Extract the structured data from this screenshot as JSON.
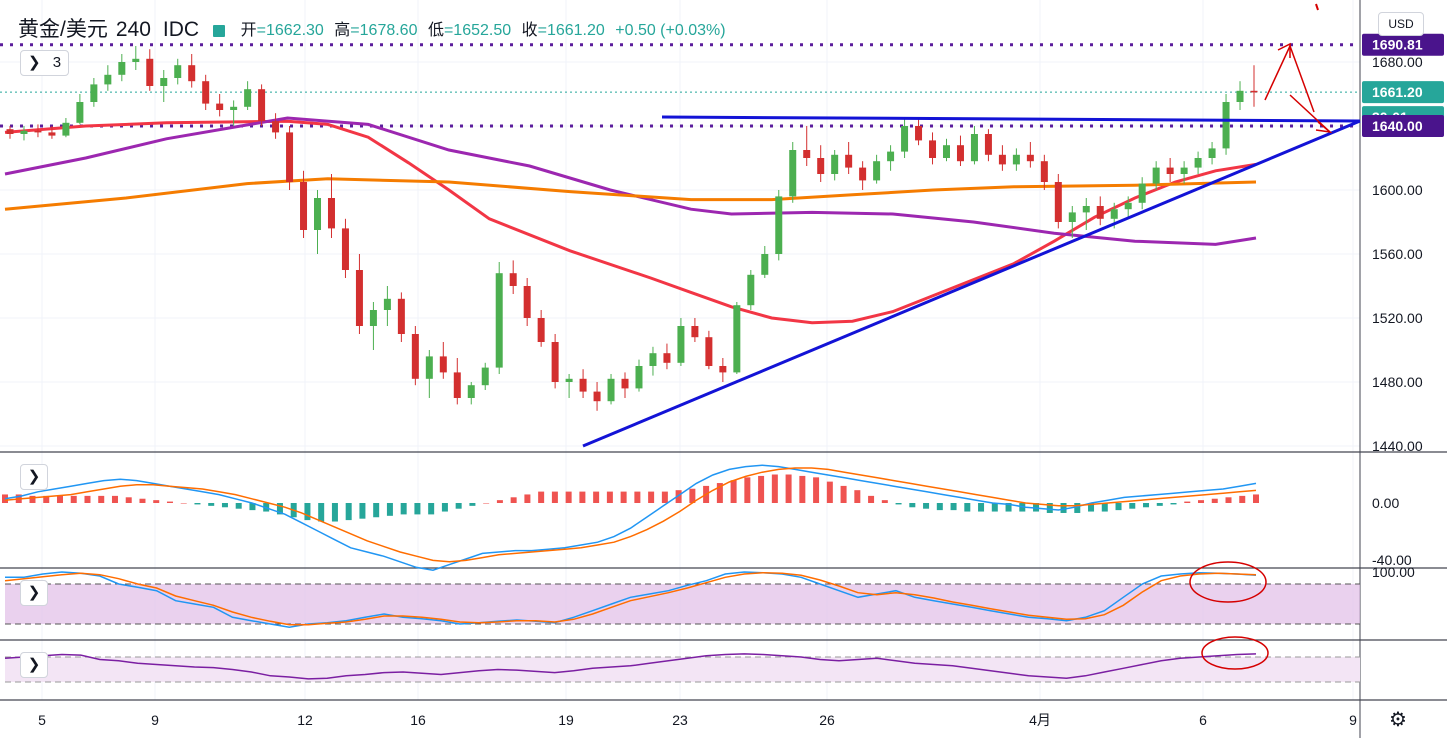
{
  "header": {
    "symbol": "黄金/美元",
    "interval": "240",
    "source": "IDC",
    "open_label": "开",
    "open": "=1662.30",
    "high_label": "高",
    "high": "=1678.60",
    "low_label": "低",
    "low": "=1652.50",
    "close_label": "收",
    "close": "=1661.20",
    "change": "+0.50 (+0.03%)"
  },
  "collapse_label": "3",
  "currency": "USD",
  "colors": {
    "up": "#26a69a",
    "candle_up": "#4caf50",
    "candle_down": "#d32f2f",
    "ma_fast": "#f23645",
    "ma_mid": "#9c27b0",
    "ma_slow": "#f57c00",
    "trendline": "#1313d6",
    "level": "#5b1d9c",
    "annotation": "#d50000"
  },
  "chart_data": [
    {
      "type": "candlestick",
      "x_ticks": [
        "5",
        "9",
        "12",
        "16",
        "19",
        "23",
        "26",
        "4月",
        "6",
        "9"
      ],
      "y_ticks": [
        "1680.00",
        "1640.00",
        "1600.00",
        "1560.00",
        "1520.00",
        "1480.00",
        "1440.00"
      ],
      "price_labels": [
        {
          "text": "1690.81",
          "value": 1690.81,
          "style": "level"
        },
        {
          "text": "1661.20",
          "value": 1661.2,
          "style": "last"
        },
        {
          "text": "30:01",
          "value": 1643.5,
          "style": "timer"
        },
        {
          "text": "1640.00",
          "value": 1640.0,
          "style": "level"
        }
      ],
      "horizontal_levels": [
        1690.81,
        1640.0
      ],
      "trendlines": [
        {
          "from": [
            19.1,
            1440
          ],
          "to": [
            8.45,
            1641
          ]
        },
        {
          "from": [
            22.8,
            1645
          ],
          "to": [
            8.45,
            1643
          ]
        }
      ],
      "ma_lines": [
        {
          "key": "ma_fast",
          "points": [
            [
              5,
              1636
            ],
            [
              7,
              1640
            ],
            [
              9,
              1642
            ],
            [
              12,
              1643
            ],
            [
              13,
              1641
            ],
            [
              14,
              1633
            ],
            [
              15,
              1617
            ],
            [
              16,
              1600
            ],
            [
              17,
              1582
            ],
            [
              19,
              1562
            ],
            [
              21,
              1545
            ],
            [
              22,
              1536
            ],
            [
              23,
              1527
            ],
            [
              24,
              1520
            ],
            [
              25,
              1517
            ],
            [
              26,
              1518
            ],
            [
              27,
              1524
            ],
            [
              28,
              1534
            ],
            [
              30,
              1554
            ],
            [
              31,
              1568
            ],
            [
              32,
              1583
            ],
            [
              33,
              1595
            ],
            [
              34,
              1605
            ],
            [
              35,
              1612
            ],
            [
              36,
              1616
            ]
          ]
        },
        {
          "key": "ma_mid",
          "points": [
            [
              5,
              1610
            ],
            [
              7,
              1620
            ],
            [
              9,
              1632
            ],
            [
              12,
              1645
            ],
            [
              14,
              1641
            ],
            [
              16,
              1625
            ],
            [
              18,
              1615
            ],
            [
              20,
              1600
            ],
            [
              22,
              1588
            ],
            [
              23,
              1585
            ],
            [
              25,
              1586
            ],
            [
              27,
              1585
            ],
            [
              29,
              1580
            ],
            [
              31,
              1573
            ],
            [
              33,
              1568
            ],
            [
              35,
              1566
            ],
            [
              36,
              1570
            ]
          ]
        },
        {
          "key": "ma_slow",
          "points": [
            [
              5,
              1588
            ],
            [
              8,
              1595
            ],
            [
              11,
              1604
            ],
            [
              13,
              1607
            ],
            [
              16,
              1605
            ],
            [
              19,
              1599
            ],
            [
              22,
              1594
            ],
            [
              24,
              1594
            ],
            [
              26,
              1597
            ],
            [
              28,
              1600
            ],
            [
              30,
              1602
            ],
            [
              33,
              1603
            ],
            [
              36,
              1605
            ]
          ]
        }
      ],
      "candles": [
        [
          1638,
          1640,
          1632,
          1635
        ],
        [
          1635,
          1640,
          1631,
          1637
        ],
        [
          1637,
          1641,
          1633,
          1636
        ],
        [
          1636,
          1640,
          1632,
          1634
        ],
        [
          1634,
          1645,
          1633,
          1642
        ],
        [
          1642,
          1660,
          1641,
          1655
        ],
        [
          1655,
          1670,
          1652,
          1666
        ],
        [
          1666,
          1678,
          1662,
          1672
        ],
        [
          1672,
          1685,
          1668,
          1680
        ],
        [
          1680,
          1690,
          1675,
          1682
        ],
        [
          1682,
          1688,
          1662,
          1665
        ],
        [
          1665,
          1675,
          1655,
          1670
        ],
        [
          1670,
          1682,
          1666,
          1678
        ],
        [
          1678,
          1685,
          1664,
          1668
        ],
        [
          1668,
          1672,
          1650,
          1654
        ],
        [
          1654,
          1660,
          1646,
          1650
        ],
        [
          1650,
          1656,
          1640,
          1652
        ],
        [
          1652,
          1668,
          1650,
          1663
        ],
        [
          1663,
          1666,
          1640,
          1643
        ],
        [
          1643,
          1648,
          1632,
          1636
        ],
        [
          1636,
          1640,
          1600,
          1605
        ],
        [
          1605,
          1612,
          1570,
          1575
        ],
        [
          1575,
          1600,
          1560,
          1595
        ],
        [
          1595,
          1610,
          1570,
          1576
        ],
        [
          1576,
          1582,
          1545,
          1550
        ],
        [
          1550,
          1560,
          1510,
          1515
        ],
        [
          1515,
          1530,
          1500,
          1525
        ],
        [
          1525,
          1540,
          1515,
          1532
        ],
        [
          1532,
          1536,
          1505,
          1510
        ],
        [
          1510,
          1515,
          1478,
          1482
        ],
        [
          1482,
          1500,
          1470,
          1496
        ],
        [
          1496,
          1505,
          1482,
          1486
        ],
        [
          1486,
          1495,
          1466,
          1470
        ],
        [
          1470,
          1480,
          1466,
          1478
        ],
        [
          1478,
          1492,
          1475,
          1489
        ],
        [
          1489,
          1555,
          1485,
          1548
        ],
        [
          1548,
          1556,
          1535,
          1540
        ],
        [
          1540,
          1545,
          1515,
          1520
        ],
        [
          1520,
          1525,
          1502,
          1505
        ],
        [
          1505,
          1510,
          1476,
          1480
        ],
        [
          1480,
          1485,
          1470,
          1482
        ],
        [
          1482,
          1488,
          1470,
          1474
        ],
        [
          1474,
          1480,
          1462,
          1468
        ],
        [
          1468,
          1485,
          1466,
          1482
        ],
        [
          1482,
          1486,
          1470,
          1476
        ],
        [
          1476,
          1494,
          1474,
          1490
        ],
        [
          1490,
          1502,
          1484,
          1498
        ],
        [
          1498,
          1504,
          1488,
          1492
        ],
        [
          1492,
          1520,
          1490,
          1515
        ],
        [
          1515,
          1520,
          1505,
          1508
        ],
        [
          1508,
          1512,
          1488,
          1490
        ],
        [
          1490,
          1495,
          1480,
          1486
        ],
        [
          1486,
          1530,
          1485,
          1528
        ],
        [
          1528,
          1550,
          1525,
          1547
        ],
        [
          1547,
          1565,
          1545,
          1560
        ],
        [
          1560,
          1600,
          1556,
          1596
        ],
        [
          1596,
          1630,
          1592,
          1625
        ],
        [
          1625,
          1640,
          1615,
          1620
        ],
        [
          1620,
          1628,
          1605,
          1610
        ],
        [
          1610,
          1625,
          1606,
          1622
        ],
        [
          1622,
          1630,
          1610,
          1614
        ],
        [
          1614,
          1618,
          1600,
          1606
        ],
        [
          1606,
          1622,
          1604,
          1618
        ],
        [
          1618,
          1628,
          1612,
          1624
        ],
        [
          1624,
          1645,
          1620,
          1640
        ],
        [
          1640,
          1644,
          1628,
          1631
        ],
        [
          1631,
          1636,
          1616,
          1620
        ],
        [
          1620,
          1632,
          1618,
          1628
        ],
        [
          1628,
          1634,
          1615,
          1618
        ],
        [
          1618,
          1640,
          1616,
          1635
        ],
        [
          1635,
          1638,
          1618,
          1622
        ],
        [
          1622,
          1628,
          1612,
          1616
        ],
        [
          1616,
          1626,
          1612,
          1622
        ],
        [
          1622,
          1630,
          1614,
          1618
        ],
        [
          1618,
          1622,
          1600,
          1605
        ],
        [
          1605,
          1610,
          1576,
          1580
        ],
        [
          1580,
          1590,
          1570,
          1586
        ],
        [
          1586,
          1595,
          1575,
          1590
        ],
        [
          1590,
          1596,
          1578,
          1582
        ],
        [
          1582,
          1592,
          1576,
          1588
        ],
        [
          1588,
          1596,
          1582,
          1592
        ],
        [
          1592,
          1608,
          1588,
          1604
        ],
        [
          1604,
          1618,
          1600,
          1614
        ],
        [
          1614,
          1620,
          1605,
          1610
        ],
        [
          1610,
          1618,
          1604,
          1614
        ],
        [
          1614,
          1624,
          1610,
          1620
        ],
        [
          1620,
          1630,
          1616,
          1626
        ],
        [
          1626,
          1660,
          1622,
          1655
        ],
        [
          1655,
          1668,
          1650,
          1662
        ],
        [
          1662,
          1678,
          1652,
          1661
        ]
      ]
    },
    {
      "type": "macd",
      "y_ticks": [
        "0.00",
        "-40.00"
      ],
      "histogram_values": [
        6,
        6,
        5,
        5,
        5,
        5,
        5,
        5,
        5,
        4,
        3,
        2,
        1,
        0,
        -1,
        -2,
        -3,
        -4,
        -5,
        -6,
        -8,
        -10,
        -12,
        -13,
        -13,
        -12,
        -11,
        -10,
        -9,
        -8,
        -8,
        -8,
        -6,
        -4,
        -2,
        0,
        2,
        4,
        6,
        8,
        8,
        8,
        8,
        8,
        8,
        8,
        8,
        8,
        8,
        9,
        10,
        12,
        14,
        16,
        18,
        19,
        20,
        20,
        19,
        18,
        15,
        12,
        9,
        5,
        2,
        -1,
        -3,
        -4,
        -5,
        -5,
        -6,
        -6,
        -6,
        -6,
        -6,
        -6,
        -7,
        -7,
        -7,
        -6,
        -6,
        -5,
        -4,
        -3,
        -2,
        -1,
        1,
        2,
        3,
        4,
        5,
        6
      ],
      "macd_line": [
        3,
        5,
        8,
        10,
        12,
        14,
        16,
        17,
        16,
        14,
        12,
        10,
        8,
        6,
        3,
        0,
        -4,
        -8,
        -14,
        -20,
        -26,
        -32,
        -35,
        -38,
        -42,
        -46,
        -48,
        -44,
        -40,
        -36,
        -35,
        -34,
        -34,
        -33,
        -32,
        -30,
        -28,
        -24,
        -18,
        -10,
        -2,
        6,
        14,
        20,
        24,
        26,
        27,
        26,
        24,
        22,
        20,
        18,
        16,
        14,
        12,
        10,
        8,
        6,
        4,
        2,
        0,
        -1,
        -3,
        -4,
        -5,
        -3,
        0,
        2,
        4,
        5,
        6,
        7,
        8,
        9,
        10,
        12,
        14
      ],
      "signal_line": [
        2,
        3,
        4,
        5,
        6,
        8,
        10,
        12,
        13,
        13,
        12,
        11,
        10,
        8,
        6,
        3,
        0,
        -3,
        -7,
        -12,
        -17,
        -22,
        -27,
        -31,
        -35,
        -38,
        -41,
        -42,
        -41,
        -39,
        -37,
        -36,
        -35,
        -34,
        -33,
        -32,
        -30,
        -28,
        -24,
        -19,
        -13,
        -6,
        2,
        9,
        15,
        19,
        22,
        24,
        25,
        25,
        24,
        22,
        20,
        18,
        16,
        14,
        12,
        10,
        8,
        6,
        4,
        2,
        0,
        -1,
        -2,
        -2,
        -1,
        0,
        1,
        2,
        3,
        4,
        5,
        6,
        7,
        8,
        9
      ]
    },
    {
      "type": "stochastic",
      "y_ticks": [
        "100.00"
      ],
      "k_line": [
        90,
        90,
        95,
        98,
        96,
        92,
        80,
        75,
        70,
        55,
        50,
        45,
        30,
        25,
        20,
        15,
        20,
        22,
        25,
        30,
        35,
        30,
        28,
        25,
        20,
        22,
        24,
        26,
        24,
        22,
        30,
        40,
        50,
        60,
        65,
        70,
        78,
        85,
        95,
        98,
        97,
        95,
        90,
        80,
        70,
        60,
        65,
        70,
        60,
        55,
        50,
        45,
        40,
        35,
        30,
        28,
        25,
        30,
        40,
        60,
        80,
        92,
        95,
        97,
        96,
        95,
        93
      ],
      "d_line": [
        85,
        88,
        91,
        94,
        96,
        94,
        88,
        80,
        74,
        62,
        55,
        48,
        38,
        30,
        24,
        19,
        19,
        21,
        23,
        27,
        32,
        32,
        30,
        27,
        23,
        22,
        23,
        25,
        25,
        23,
        27,
        35,
        45,
        55,
        61,
        67,
        74,
        82,
        90,
        95,
        97,
        96,
        93,
        86,
        77,
        67,
        64,
        67,
        64,
        59,
        53,
        48,
        43,
        38,
        33,
        30,
        27,
        28,
        34,
        48,
        68,
        85,
        92,
        95,
        96,
        95,
        94
      ]
    },
    {
      "type": "rsi",
      "rsi_line": [
        68,
        70,
        72,
        74,
        73,
        66,
        64,
        60,
        58,
        56,
        54,
        53,
        50,
        46,
        40,
        38,
        35,
        36,
        40,
        42,
        45,
        46,
        44,
        42,
        45,
        48,
        50,
        49,
        47,
        45,
        48,
        52,
        54,
        56,
        60,
        64,
        68,
        72,
        74,
        75,
        74,
        72,
        70,
        66,
        64,
        66,
        68,
        64,
        60,
        58,
        56,
        52,
        48,
        44,
        40,
        38,
        36,
        40,
        46,
        52,
        58,
        64,
        68,
        70,
        72,
        74,
        75
      ]
    }
  ]
}
